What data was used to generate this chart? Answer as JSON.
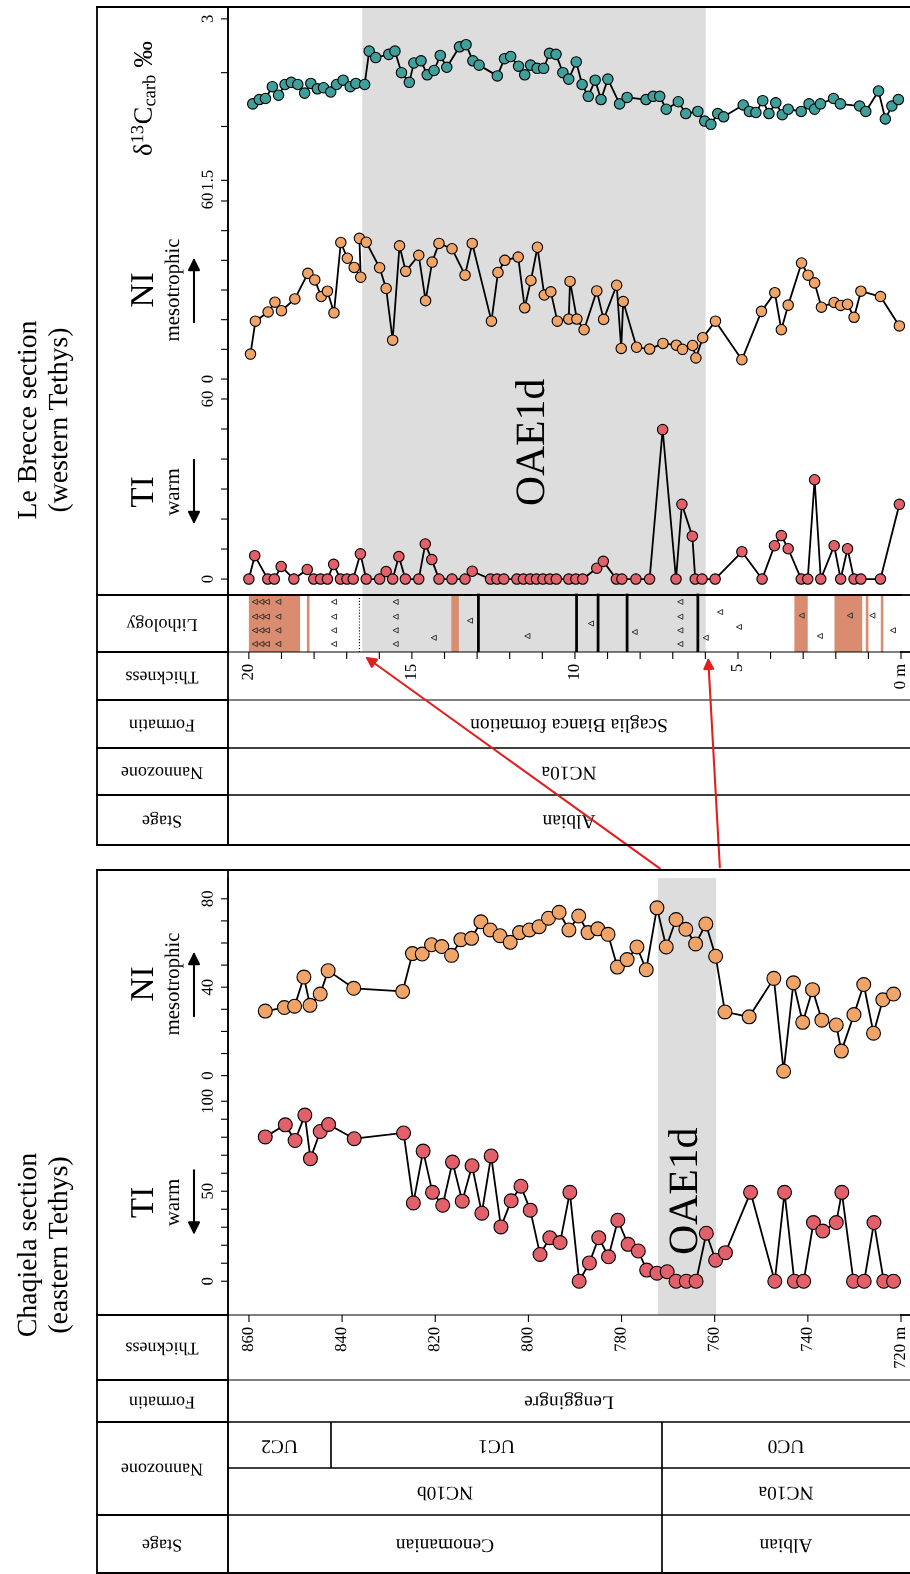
{
  "chart_data": [
    {
      "type": "line",
      "title": "Le Brecce section\n(western Tethys)",
      "ylabel": "δ$^{13}$C$_{carb}$ ‰",
      "color": "#3f9f9b",
      "marker": "circle",
      "tick_labels": "y",
      "xlim": [
        20.64,
        0
      ],
      "ylim": [
        1.41,
        3.11
      ],
      "yticks": [
        1.5,
        {
          "value": 2,
          "label": null
        },
        {
          "value": 2.5,
          "label": null
        },
        3
      ],
      "bands": [
        {
          "axis": "x",
          "from": 16.52,
          "to": 5.99,
          "color": "#dddddd"
        }
      ],
      "x": [
        19.88,
        19.68,
        19.49,
        19.28,
        19.09,
        18.89,
        18.7,
        18.5,
        18.29,
        18.1,
        17.9,
        17.71,
        17.49,
        17.31,
        17.11,
        16.89,
        16.72,
        16.45,
        16.31,
        16.11,
        15.71,
        15.52,
        15.32,
        15.08,
        14.94,
        14.72,
        14.53,
        14.32,
        14.13,
        13.93,
        13.54,
        13.34,
        13.13,
        12.94,
        12.38,
        12.16,
        11.97,
        11.73,
        11.54,
        11.36,
        11.16,
        10.96,
        10.78,
        10.58,
        10.37,
        10.19,
        9.96,
        9.78,
        9.59,
        9.38,
        9.2,
        8.99,
        8.63,
        8.4,
        7.82,
        7.6,
        7.4,
        7.2,
        6.83,
        6.6,
        6.23,
        6.02,
        5.83,
        5.62,
        5.44,
        4.84,
        4.65,
        4.45,
        4.24,
        4.05,
        3.84,
        3.64,
        3.46,
        3.06,
        2.82,
        2.65,
        2.47,
        2.07,
        1.86,
        1.27,
        1.08,
        0.69,
        0.48,
        0.28,
        0.08
      ],
      "values": [
        2.21,
        2.25,
        2.26,
        2.37,
        2.29,
        2.39,
        2.41,
        2.39,
        2.31,
        2.4,
        2.35,
        2.36,
        2.32,
        2.39,
        2.43,
        2.37,
        2.4,
        2.39,
        2.7,
        2.64,
        2.67,
        2.7,
        2.5,
        2.41,
        2.59,
        2.61,
        2.48,
        2.52,
        2.66,
        2.55,
        2.74,
        2.76,
        2.61,
        2.57,
        2.47,
        2.63,
        2.65,
        2.56,
        2.48,
        2.57,
        2.54,
        2.54,
        2.68,
        2.67,
        2.5,
        2.44,
        2.6,
        2.39,
        2.28,
        2.43,
        2.25,
        2.44,
        2.21,
        2.27,
        2.25,
        2.28,
        2.28,
        2.16,
        2.23,
        2.12,
        2.14,
        2.05,
        2.02,
        2.12,
        2.09,
        2.2,
        2.14,
        2.13,
        2.24,
        2.12,
        2.22,
        2.11,
        2.16,
        2.14,
        2.21,
        2.16,
        2.21,
        2.26,
        2.21,
        2.19,
        2.14,
        2.33,
        2.07,
        2.19,
        2.25
      ]
    },
    {
      "type": "line",
      "ylabel": "NI",
      "annotations": [
        "mesotrophic"
      ],
      "color": "#f0a468",
      "marker": "circle",
      "tick_labels": "y",
      "xlim": [
        20.64,
        0
      ],
      "ylim": [
        -3.7,
        63.7
      ],
      "yticks": [
        0,
        {
          "value": 10,
          "label": null
        },
        {
          "value": 20,
          "label": null
        },
        {
          "value": 30,
          "label": null
        },
        {
          "value": 40,
          "label": null
        },
        {
          "value": 50,
          "label": null
        },
        60
      ],
      "bands": [
        {
          "axis": "x",
          "from": 16.52,
          "to": 5.99,
          "color": "#dddddd"
        }
      ],
      "x": [
        19.95,
        19.8,
        19.41,
        19.2,
        19.0,
        18.59,
        18.19,
        17.98,
        17.78,
        17.59,
        17.39,
        17.18,
        16.98,
        16.77,
        16.57,
        16.61,
        16.4,
        15.99,
        15.79,
        15.59,
        15.38,
        15.19,
        14.79,
        14.58,
        14.38,
        14.17,
        13.77,
        13.37,
        13.15,
        12.56,
        12.36,
        12.15,
        11.74,
        11.54,
        11.35,
        11.15,
        10.94,
        10.74,
        10.54,
        10.19,
        10.15,
        9.94,
        9.72,
        9.33,
        9.12,
        8.72,
        8.58,
        8.52,
        8.11,
        7.71,
        7.3,
        6.89,
        6.7,
        6.39,
        6.29,
        6.08,
        5.69,
        4.88,
        4.28,
        3.87,
        3.67,
        3.46,
        3.05,
        2.85,
        2.65,
        2.44,
        2.05,
        1.85,
        1.64,
        1.44,
        1.23,
        0.63,
        0.05
      ],
      "values": [
        8.4,
        19.5,
        22.6,
        25.9,
        23.0,
        27.0,
        35.6,
        33.4,
        27.8,
        29.6,
        22.3,
        46.0,
        40.7,
        37.6,
        34.3,
        47.4,
        46.1,
        37.5,
        30.5,
        13.1,
        44.9,
        36.3,
        41.7,
        26.4,
        39.4,
        45.7,
        43.9,
        35.0,
        45.7,
        19.5,
        35.9,
        40.0,
        41.1,
        24.0,
        33.2,
        44.4,
        28.3,
        29.4,
        19.5,
        20.2,
        32.9,
        20.2,
        16.6,
        29.7,
        20.1,
        31.6,
        10.3,
        26.1,
        10.7,
        10.1,
        12.0,
        11.4,
        10.0,
        11.3,
        7.1,
        13.9,
        19.5,
        6.5,
        22.8,
        29.1,
        16.6,
        24.9,
        39.1,
        35.0,
        32.4,
        24.2,
        25.8,
        24.8,
        25.2,
        20.8,
        29.6,
        27.8,
        17.9
      ]
    },
    {
      "type": "line",
      "ylabel": "TI",
      "annotations": [
        "warm"
      ],
      "color": "#e2606a",
      "marker": "circle",
      "xlabel": "Thickness",
      "xlim": [
        20.64,
        0
      ],
      "ylim": [
        -24.3,
        63
      ],
      "xticks": [
        20,
        {
          "value": 19,
          "label": null
        },
        {
          "value": 18,
          "label": null
        },
        {
          "value": 17,
          "label": null
        },
        {
          "value": 16,
          "label": null
        },
        15,
        {
          "value": 14,
          "label": null
        },
        {
          "value": 13,
          "label": null
        },
        {
          "value": 12,
          "label": null
        },
        {
          "value": 11,
          "label": null
        },
        10,
        {
          "value": 9,
          "label": null
        },
        {
          "value": 8,
          "label": null
        },
        {
          "value": 7,
          "label": null
        },
        {
          "value": 6,
          "label": null
        },
        5,
        {
          "value": 4,
          "label": null
        },
        {
          "value": 3,
          "label": null
        },
        {
          "value": 2,
          "label": null
        },
        {
          "value": 1,
          "label": null
        },
        {
          "value": 0,
          "label": "0 m"
        }
      ],
      "yticks": [
        0,
        {
          "value": 10,
          "label": null
        },
        {
          "value": 20,
          "label": null
        },
        {
          "value": 30,
          "label": null
        },
        {
          "value": 40,
          "label": null
        },
        {
          "value": 50,
          "label": null
        },
        60
      ],
      "x": [
        20.0,
        19.82,
        19.42,
        19.22,
        19.01,
        18.62,
        18.21,
        18.01,
        17.8,
        17.59,
        17.4,
        17.19,
        16.99,
        16.8,
        16.58,
        16.4,
        15.99,
        15.79,
        15.59,
        15.4,
        15.2,
        14.79,
        14.59,
        14.39,
        14.17,
        13.77,
        13.37,
        13.15,
        12.59,
        12.39,
        12.18,
        11.78,
        11.58,
        11.37,
        11.18,
        10.98,
        10.77,
        10.57,
        10.19,
        9.97,
        9.76,
        9.33,
        9.13,
        8.73,
        8.56,
        8.13,
        7.71,
        7.31,
        6.9,
        6.72,
        6.4,
        6.31,
        6.1,
        5.7,
        4.88,
        4.26,
        3.88,
        3.67,
        3.46,
        3.06,
        2.86,
        2.65,
        2.46,
        2.05,
        1.85,
        1.64,
        1.44,
        1.23,
        0.63,
        0.05
      ],
      "values": [
        0,
        7.8,
        0,
        0,
        4.2,
        0,
        3.2,
        0,
        0,
        0,
        4.9,
        0,
        0,
        0,
        8.4,
        0,
        0,
        2.5,
        0,
        7.5,
        0,
        0,
        11.7,
        6.5,
        0,
        0,
        0,
        2.6,
        0,
        0,
        0,
        0,
        0,
        0,
        0,
        0,
        0,
        0,
        0,
        0,
        0,
        3.6,
        5.9,
        0,
        0,
        0,
        0,
        49.8,
        0,
        24.9,
        14.3,
        0,
        0,
        0,
        9.1,
        0,
        11.1,
        14.5,
        10.1,
        0,
        0,
        33.1,
        0,
        11.1,
        0,
        10.1,
        0,
        0,
        0,
        24.9
      ],
      "bands": [
        {
          "axis": "x",
          "from": 16.52,
          "to": 5.99,
          "color": "#dddddd",
          "label": "OAE1d"
        },
        {
          "axis": "x",
          "from": 20.0,
          "to": 18.43,
          "color": "#d98c6f"
        },
        {
          "axis": "x",
          "from": 18.22,
          "to": 18.14,
          "color": "#d98c6f"
        },
        {
          "axis": "x",
          "from": 13.79,
          "to": 13.56,
          "color": "#d98c6f"
        },
        {
          "axis": "x",
          "from": 3.27,
          "to": 2.86,
          "color": "#d98c6f"
        },
        {
          "axis": "x",
          "from": 2.04,
          "to": 1.19,
          "color": "#d98c6f"
        },
        {
          "axis": "x",
          "from": 1.08,
          "to": 1.0,
          "color": "#d98c6f"
        },
        {
          "axis": "x",
          "from": 0.62,
          "to": 0.54,
          "color": "#d98c6f"
        }
      ],
      "ref_lines": [
        {
          "axis": "y",
          "value": -5.3,
          "line_style": "solid"
        },
        {
          "axis": "x",
          "value": 16.61,
          "line_style": "dotted"
        },
        {
          "axis": "x",
          "value": 12.96,
          "line_style": "solid"
        },
        {
          "axis": "x",
          "value": 9.95,
          "line_style": "solid"
        },
        {
          "axis": "x",
          "value": 9.29,
          "line_style": "solid"
        },
        {
          "axis": "x",
          "value": 8.4,
          "line_style": "solid"
        },
        {
          "axis": "x",
          "value": 6.23,
          "line_style": "solid"
        }
      ]
    },
    {
      "type": "other",
      "ylabel": "Lithology"
    },
    {
      "type": "other",
      "ylabel": "Formatin",
      "annotations": [
        "Scaglia Bianca formation"
      ]
    },
    {
      "type": "other",
      "ylabel": "Nannozone",
      "annotations": [
        "NC10a"
      ]
    },
    {
      "type": "other",
      "ylabel": "Stage",
      "annotations": [
        "Albian"
      ]
    },
    {
      "type": "line",
      "title": "Chaqiela section\n(eastern Tethys)",
      "ylabel": "NI",
      "annotations": [
        "mesotrophic"
      ],
      "color": "#f0a468",
      "marker": "circle",
      "tick_labels": "y",
      "xlim": [
        864.5,
        720
      ],
      "ylim": [
        -6.5,
        89.4
      ],
      "yticks": [
        0,
        {
          "value": 10,
          "label": null
        },
        {
          "value": 20,
          "label": null
        },
        {
          "value": 30,
          "label": null
        },
        40,
        {
          "value": 50,
          "label": null
        },
        {
          "value": 60,
          "label": null
        },
        {
          "value": 70,
          "label": null
        },
        80
      ],
      "bands": [
        {
          "axis": "x",
          "from": 772.2,
          "to": 759.7,
          "color": "#dddddd"
        }
      ],
      "x": [
        856.5,
        852.4,
        850.2,
        848.2,
        846.9,
        844.7,
        843.0,
        837.5,
        827.0,
        824.9,
        822.8,
        820.8,
        818.6,
        816.5,
        814.5,
        812.2,
        810.2,
        808.2,
        806.1,
        803.9,
        801.9,
        799.8,
        797.7,
        795.7,
        793.4,
        791.3,
        789.2,
        787.2,
        785.1,
        782.9,
        780.9,
        778.8,
        776.7,
        774.7,
        772.4,
        770.4,
        768.3,
        766.2,
        764.1,
        761.9,
        759.8,
        757.8,
        752.6,
        747.3,
        745.2,
        743.1,
        741.1,
        739.0,
        737.0,
        733.9,
        732.8,
        730.1,
        728.0,
        725.9,
        723.9,
        721.6
      ],
      "values": [
        29.2,
        30.8,
        31.4,
        44.6,
        31.8,
        36.9,
        47.5,
        39.5,
        38.1,
        55.2,
        55.0,
        59.2,
        58.4,
        54.4,
        61.5,
        62.1,
        69.6,
        65.9,
        63.3,
        60.3,
        64.7,
        65.9,
        67.4,
        71.2,
        73.9,
        65.9,
        72.2,
        64.7,
        66.4,
        63.9,
        49.1,
        52.5,
        58.2,
        47.9,
        75.9,
        58.2,
        70.6,
        66.2,
        59.6,
        68.6,
        54.0,
        28.8,
        26.6,
        44.0,
        2.0,
        42.0,
        24.1,
        38.9,
        25.1,
        22.9,
        11.1,
        27.6,
        41.2,
        19.2,
        34.3,
        36.9
      ]
    },
    {
      "type": "line",
      "ylabel": "TI",
      "annotations": [
        "warm"
      ],
      "xlabel": "Thickness",
      "color": "#e2606a",
      "marker": "circle",
      "xlim": [
        864.5,
        720
      ],
      "ylim": [
        -18.75,
        106.25
      ],
      "xticks": [
        860,
        840,
        820,
        800,
        780,
        760,
        740,
        {
          "value": 720,
          "label": "720 m"
        }
      ],
      "yticks": [
        0,
        {
          "value": 10,
          "label": null
        },
        {
          "value": 20,
          "label": null
        },
        {
          "value": 30,
          "label": null
        },
        {
          "value": 40,
          "label": null
        },
        50,
        {
          "value": 60,
          "label": null
        },
        {
          "value": 70,
          "label": null
        },
        {
          "value": 80,
          "label": null
        },
        {
          "value": 90,
          "label": null
        },
        100
      ],
      "bands": [
        {
          "axis": "x",
          "from": 772.2,
          "to": 759.7,
          "color": "#dddddd",
          "label": "OAE1d"
        }
      ],
      "x": [
        856.5,
        852.2,
        850.1,
        848.0,
        846.8,
        844.7,
        842.9,
        837.4,
        826.8,
        824.7,
        822.6,
        820.6,
        818.4,
        816.3,
        814.2,
        812.1,
        810.0,
        808.0,
        805.9,
        803.7,
        801.6,
        799.6,
        797.5,
        795.4,
        793.2,
        791.1,
        789.1,
        786.9,
        784.9,
        782.8,
        780.8,
        778.6,
        776.4,
        774.6,
        772.4,
        770.2,
        768.3,
        766.1,
        764.0,
        761.8,
        759.8,
        757.7,
        752.3,
        747.1,
        745.0,
        742.9,
        740.9,
        738.8,
        736.8,
        733.9,
        732.7,
        730.2,
        727.9,
        725.8,
        723.7,
        721.6
      ],
      "values": [
        80.2,
        86.9,
        78.2,
        92.3,
        68.1,
        83.2,
        87.1,
        79.2,
        82.4,
        43.5,
        72.3,
        49.4,
        42.2,
        66.2,
        44.5,
        64.2,
        37.8,
        69.6,
        30.2,
        44.7,
        52.8,
        39.5,
        14.9,
        24.2,
        21.5,
        49.4,
        0,
        10.2,
        24.2,
        13.6,
        33.9,
        20.5,
        16.8,
        6.2,
        4.5,
        5.3,
        0,
        0,
        0,
        26.7,
        11.7,
        15.9,
        49.4,
        0,
        49.4,
        0,
        0,
        32.6,
        27.9,
        32.6,
        49.4,
        0,
        0,
        32.6,
        0,
        0
      ]
    },
    {
      "type": "other",
      "ylabel": "Formatin",
      "annotations": [
        "Lenggingre"
      ]
    },
    {
      "type": "other",
      "ylabel": "Nannozone",
      "annotations": [
        "UC2",
        "UC1",
        "UC0"
      ]
    },
    {
      "type": "other",
      "annotations": [
        "NC10b",
        "NC10a"
      ]
    },
    {
      "type": "other",
      "ylabel": "Stage",
      "annotations": [
        "Cenomanian",
        "Albian"
      ]
    }
  ]
}
